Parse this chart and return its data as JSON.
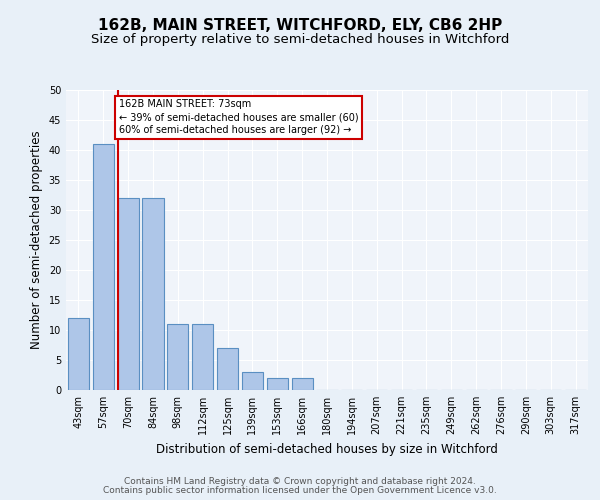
{
  "title": "162B, MAIN STREET, WITCHFORD, ELY, CB6 2HP",
  "subtitle": "Size of property relative to semi-detached houses in Witchford",
  "xlabel": "Distribution of semi-detached houses by size in Witchford",
  "ylabel": "Number of semi-detached properties",
  "categories": [
    "43sqm",
    "57sqm",
    "70sqm",
    "84sqm",
    "98sqm",
    "112sqm",
    "125sqm",
    "139sqm",
    "153sqm",
    "166sqm",
    "180sqm",
    "194sqm",
    "207sqm",
    "221sqm",
    "235sqm",
    "249sqm",
    "262sqm",
    "276sqm",
    "290sqm",
    "303sqm",
    "317sqm"
  ],
  "values": [
    12,
    41,
    32,
    32,
    11,
    11,
    7,
    3,
    2,
    2,
    0,
    0,
    0,
    0,
    0,
    0,
    0,
    0,
    0,
    0,
    0
  ],
  "bar_color": "#aec6e8",
  "bar_edge_color": "#5a8fc2",
  "vline_color": "#cc0000",
  "annotation_text": "162B MAIN STREET: 73sqm\n← 39% of semi-detached houses are smaller (60)\n60% of semi-detached houses are larger (92) →",
  "ylim": [
    0,
    50
  ],
  "yticks": [
    0,
    5,
    10,
    15,
    20,
    25,
    30,
    35,
    40,
    45,
    50
  ],
  "footer_line1": "Contains HM Land Registry data © Crown copyright and database right 2024.",
  "footer_line2": "Contains public sector information licensed under the Open Government Licence v3.0.",
  "bg_color": "#e8f0f8",
  "plot_bg_color": "#f0f4fa",
  "title_fontsize": 11,
  "subtitle_fontsize": 9.5,
  "tick_fontsize": 7,
  "axis_label_fontsize": 8.5,
  "footer_fontsize": 6.5
}
